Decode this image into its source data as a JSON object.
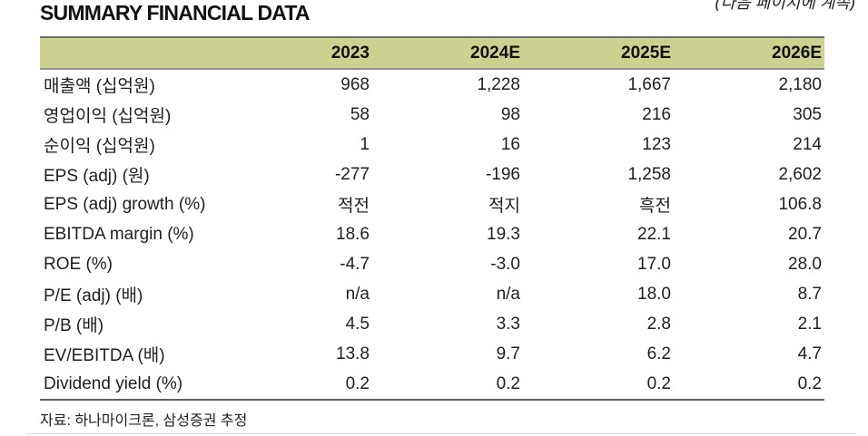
{
  "page": {
    "title": "SUMMARY FINANCIAL DATA",
    "continuation_note": "(다음 페이지에 계속)",
    "source_note": "자료: 하나마이크론, 삼성증권 추정"
  },
  "colors": {
    "header_background": "#ccd18f",
    "header_top_border": "#6f6f6f",
    "header_bottom_border": "#8f8f8f",
    "table_bottom_border": "#606060",
    "text": "#1f1f1f"
  },
  "table": {
    "columns": [
      "2023",
      "2024E",
      "2025E",
      "2026E"
    ],
    "rows": [
      {
        "label": "매출액 (십억원)",
        "values": [
          "968",
          "1,228",
          "1,667",
          "2,180"
        ]
      },
      {
        "label": "영업이익 (십억원)",
        "values": [
          "58",
          "98",
          "216",
          "305"
        ]
      },
      {
        "label": "순이익 (십억원)",
        "values": [
          "1",
          "16",
          "123",
          "214"
        ]
      },
      {
        "label": "EPS (adj) (원)",
        "values": [
          "-277",
          "-196",
          "1,258",
          "2,602"
        ]
      },
      {
        "label": "EPS (adj) growth (%)",
        "values": [
          "적전",
          "적지",
          "흑전",
          "106.8"
        ]
      },
      {
        "label": "EBITDA margin (%)",
        "values": [
          "18.6",
          "19.3",
          "22.1",
          "20.7"
        ]
      },
      {
        "label": "ROE (%)",
        "values": [
          "-4.7",
          "-3.0",
          "17.0",
          "28.0"
        ]
      },
      {
        "label": "P/E (adj) (배)",
        "values": [
          "n/a",
          "n/a",
          "18.0",
          "8.7"
        ]
      },
      {
        "label": "P/B (배)",
        "values": [
          "4.5",
          "3.3",
          "2.8",
          "2.1"
        ]
      },
      {
        "label": "EV/EBITDA (배)",
        "values": [
          "13.8",
          "9.7",
          "6.2",
          "4.7"
        ]
      },
      {
        "label": "Dividend yield (%)",
        "values": [
          "0.2",
          "0.2",
          "0.2",
          "0.2"
        ]
      }
    ]
  }
}
